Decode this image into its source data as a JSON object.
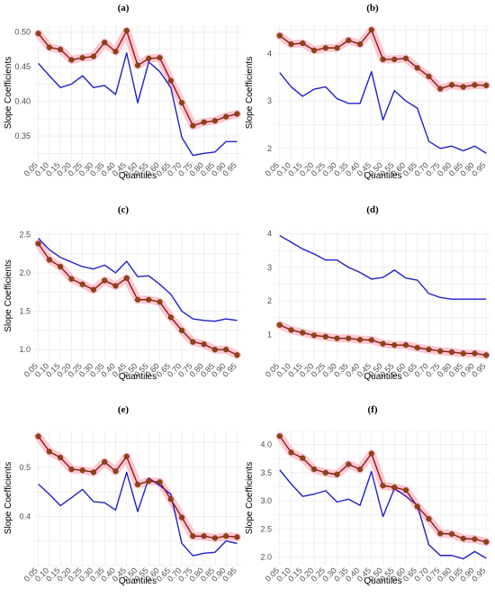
{
  "colors": {
    "ols": "#2020cc",
    "quantile": "#8b1a1a",
    "marker": "#8b4513",
    "band": "#ffb6c1",
    "grid": "#ebebeb",
    "tick_text": "#4d4d4d"
  },
  "chart_data": [
    {
      "type": "line",
      "panel_label": "(a)",
      "xlabel": "Quantiles",
      "ylabel": "Slope Coefficients",
      "x": [
        "0.05",
        "0.10",
        "0.15",
        "0.20",
        "0.25",
        "0.30",
        "0.35",
        "0.40",
        "0.45",
        "0.50",
        "0.55",
        "0.60",
        "0.65",
        "0.70",
        "0.75",
        "0.80",
        "0.85",
        "0.90",
        "0.95"
      ],
      "ylim": [
        0.315,
        0.51
      ],
      "yticks": [
        0.35,
        0.4,
        0.45,
        0.5
      ],
      "ytick_labels": [
        "0.35",
        "0.40",
        "0.45",
        "0.50"
      ],
      "series": [
        {
          "role": "ols",
          "values": [
            0.455,
            0.437,
            0.42,
            0.425,
            0.437,
            0.42,
            0.423,
            0.41,
            0.47,
            0.398,
            0.457,
            0.443,
            0.42,
            0.348,
            0.322,
            0.325,
            0.327,
            0.342,
            0.342
          ]
        },
        {
          "role": "quantile",
          "values": [
            0.498,
            0.478,
            0.475,
            0.46,
            0.463,
            0.465,
            0.485,
            0.472,
            0.502,
            0.452,
            0.462,
            0.463,
            0.43,
            0.398,
            0.365,
            0.37,
            0.372,
            0.378,
            0.382
          ]
        }
      ]
    },
    {
      "type": "line",
      "panel_label": "(b)",
      "xlabel": "Quantiles",
      "ylabel": "Slope Coefficients",
      "x": [
        "0.05",
        "0.10",
        "0.15",
        "0.20",
        "0.25",
        "0.30",
        "0.35",
        "0.40",
        "0.45",
        "0.50",
        "0.55",
        "0.60",
        "0.65",
        "0.70",
        "0.75",
        "0.80",
        "0.85",
        "0.90",
        "0.95"
      ],
      "ylim": [
        1.75,
        4.6
      ],
      "yticks": [
        2,
        3,
        4
      ],
      "ytick_labels": [
        "2",
        "3",
        "4"
      ],
      "series": [
        {
          "role": "ols",
          "values": [
            3.6,
            3.3,
            3.1,
            3.25,
            3.3,
            3.05,
            2.95,
            2.95,
            3.62,
            2.6,
            3.22,
            3.0,
            2.85,
            2.15,
            2.0,
            2.05,
            1.95,
            2.05,
            1.9
          ]
        },
        {
          "role": "quantile",
          "values": [
            4.38,
            4.2,
            4.22,
            4.07,
            4.12,
            4.12,
            4.28,
            4.2,
            4.5,
            3.88,
            3.88,
            3.9,
            3.7,
            3.52,
            3.26,
            3.34,
            3.3,
            3.34,
            3.33
          ]
        }
      ]
    },
    {
      "type": "line",
      "panel_label": "(c)",
      "xlabel": "Quantiles",
      "ylabel": "Slope Coefficients",
      "x": [
        "0.05",
        "0.10",
        "0.15",
        "0.20",
        "0.25",
        "0.30",
        "0.35",
        "0.40",
        "0.45",
        "0.50",
        "0.55",
        "0.60",
        "0.65",
        "0.70",
        "0.75",
        "0.80",
        "0.85",
        "0.90",
        "0.95"
      ],
      "ylim": [
        0.85,
        2.55
      ],
      "yticks": [
        1.0,
        1.5,
        2.0,
        2.5
      ],
      "ytick_labels": [
        "1.0",
        "1.5",
        "2.0",
        "2.5"
      ],
      "series": [
        {
          "role": "ols",
          "values": [
            2.45,
            2.3,
            2.2,
            2.14,
            2.08,
            2.05,
            2.1,
            2.0,
            2.15,
            1.95,
            1.96,
            1.85,
            1.72,
            1.5,
            1.4,
            1.38,
            1.37,
            1.4,
            1.38
          ]
        },
        {
          "role": "quantile",
          "values": [
            2.38,
            2.17,
            2.08,
            1.92,
            1.85,
            1.78,
            1.9,
            1.83,
            1.93,
            1.65,
            1.65,
            1.62,
            1.42,
            1.25,
            1.1,
            1.07,
            1.0,
            1.0,
            0.93
          ]
        }
      ]
    },
    {
      "type": "line",
      "panel_label": "(d)",
      "xlabel": "Quantiles",
      "ylabel": "",
      "x": [
        "0.05",
        "0.10",
        "0.15",
        "0.20",
        "0.25",
        "0.30",
        "0.35",
        "0.40",
        "0.45",
        "0.50",
        "0.55",
        "0.60",
        "0.65",
        "0.70",
        "0.75",
        "0.80",
        "0.85",
        "0.90",
        "0.95"
      ],
      "ylim": [
        0.2,
        4.1
      ],
      "yticks": [
        1,
        2,
        3,
        4
      ],
      "ytick_labels": [
        "1",
        "2",
        "3",
        "4"
      ],
      "series": [
        {
          "role": "ols",
          "values": [
            3.95,
            3.75,
            3.55,
            3.4,
            3.22,
            3.22,
            3.0,
            2.85,
            2.65,
            2.7,
            2.92,
            2.68,
            2.62,
            2.22,
            2.1,
            2.05,
            2.05,
            2.05,
            2.05
          ]
        },
        {
          "role": "quantile",
          "values": [
            1.28,
            1.13,
            1.05,
            0.97,
            0.93,
            0.88,
            0.88,
            0.84,
            0.83,
            0.72,
            0.68,
            0.68,
            0.6,
            0.55,
            0.5,
            0.47,
            0.43,
            0.43,
            0.38
          ]
        }
      ]
    },
    {
      "type": "line",
      "panel_label": "(e)",
      "xlabel": "Quantiles",
      "ylabel": "Slope Coefficients",
      "x": [
        "0.05",
        "0.10",
        "0.15",
        "0.20",
        "0.25",
        "0.30",
        "0.35",
        "0.40",
        "0.45",
        "0.50",
        "0.55",
        "0.60",
        "0.65",
        "0.70",
        "0.75",
        "0.80",
        "0.85",
        "0.90",
        "0.95"
      ],
      "ylim": [
        0.3,
        0.575
      ],
      "yticks": [
        0.4,
        0.5
      ],
      "ytick_labels": [
        "0.4",
        "0.5"
      ],
      "series": [
        {
          "role": "ols",
          "values": [
            0.466,
            0.445,
            0.422,
            0.438,
            0.455,
            0.43,
            0.428,
            0.413,
            0.49,
            0.41,
            0.478,
            0.463,
            0.445,
            0.345,
            0.32,
            0.325,
            0.327,
            0.35,
            0.345
          ]
        },
        {
          "role": "quantile",
          "values": [
            0.563,
            0.532,
            0.52,
            0.496,
            0.494,
            0.49,
            0.511,
            0.492,
            0.522,
            0.465,
            0.472,
            0.47,
            0.435,
            0.398,
            0.36,
            0.36,
            0.356,
            0.36,
            0.358
          ]
        }
      ]
    },
    {
      "type": "line",
      "panel_label": "(f)",
      "xlabel": "Quantiles",
      "ylabel": "Slope Coefficients",
      "x": [
        "0.05",
        "0.10",
        "0.15",
        "0.20",
        "0.25",
        "0.30",
        "0.35",
        "0.40",
        "0.45",
        "0.50",
        "0.55",
        "0.60",
        "0.65",
        "0.70",
        "0.75",
        "0.80",
        "0.85",
        "0.90",
        "0.95"
      ],
      "ylim": [
        1.85,
        4.25
      ],
      "yticks": [
        2.0,
        2.5,
        3.0,
        3.5,
        4.0
      ],
      "ytick_labels": [
        "2.0",
        "2.5",
        "3.0",
        "3.5",
        "4.0"
      ],
      "series": [
        {
          "role": "ols",
          "values": [
            3.55,
            3.3,
            3.08,
            3.12,
            3.18,
            2.98,
            3.03,
            2.92,
            3.52,
            2.72,
            3.22,
            3.08,
            2.92,
            2.22,
            2.03,
            2.03,
            1.97,
            2.1,
            1.98
          ]
        },
        {
          "role": "quantile",
          "values": [
            4.15,
            3.86,
            3.76,
            3.56,
            3.5,
            3.47,
            3.65,
            3.56,
            3.84,
            3.27,
            3.24,
            3.19,
            2.9,
            2.68,
            2.42,
            2.41,
            2.33,
            2.32,
            2.27
          ]
        }
      ]
    }
  ]
}
